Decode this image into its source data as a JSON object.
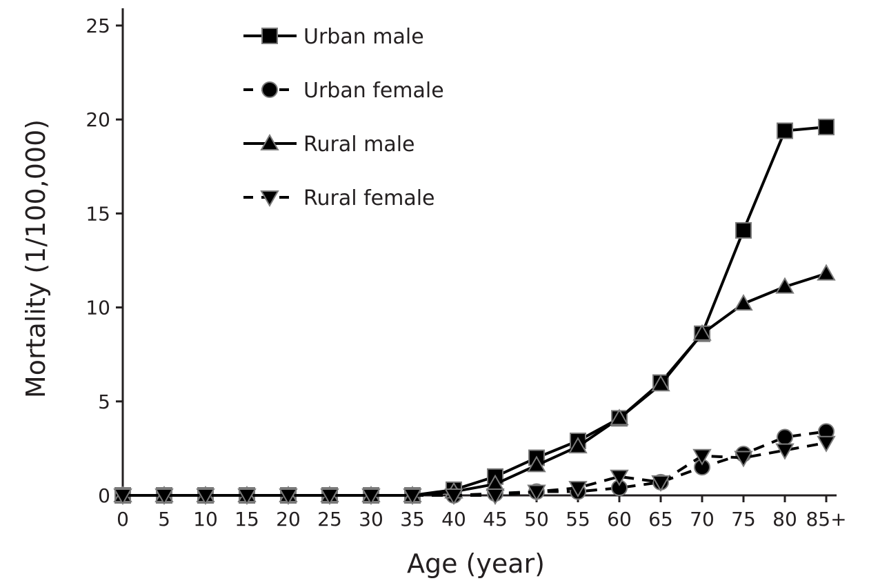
{
  "chart_data": {
    "type": "line",
    "title": "",
    "xlabel": "Age (year)",
    "ylabel": "Mortality (1/100,000)",
    "categories": [
      "0",
      "5",
      "10",
      "15",
      "20",
      "25",
      "30",
      "35",
      "40",
      "45",
      "50",
      "55",
      "60",
      "65",
      "70",
      "75",
      "80",
      "85+"
    ],
    "ylim": [
      0,
      25
    ],
    "yticks": [
      0,
      5,
      10,
      15,
      20,
      25
    ],
    "grid": false,
    "legend_position": "top-left",
    "series": [
      {
        "name": "Urban male",
        "marker": "square",
        "dash": "solid",
        "values": [
          0,
          0,
          0,
          0,
          0,
          0,
          0,
          0,
          0.3,
          1.0,
          2.0,
          2.9,
          4.1,
          6.0,
          8.6,
          14.1,
          19.4,
          19.6
        ]
      },
      {
        "name": "Urban female",
        "marker": "circle",
        "dash": "dashed",
        "values": [
          0,
          0,
          0,
          0,
          0,
          0,
          0,
          0,
          0,
          0.1,
          0.2,
          0.2,
          0.4,
          0.7,
          1.5,
          2.2,
          3.1,
          3.4
        ]
      },
      {
        "name": "Rural male",
        "marker": "triangle-up",
        "dash": "solid",
        "values": [
          0,
          0,
          0,
          0,
          0,
          0,
          0,
          0,
          0.2,
          0.6,
          1.6,
          2.6,
          4.1,
          5.9,
          8.6,
          10.2,
          11.1,
          11.8
        ]
      },
      {
        "name": "Rural female",
        "marker": "triangle-down",
        "dash": "dashed",
        "values": [
          0,
          0,
          0,
          0,
          0,
          0,
          0,
          0,
          0,
          0,
          0.2,
          0.4,
          1.0,
          0.7,
          2.1,
          2.0,
          2.4,
          2.8
        ]
      }
    ]
  }
}
